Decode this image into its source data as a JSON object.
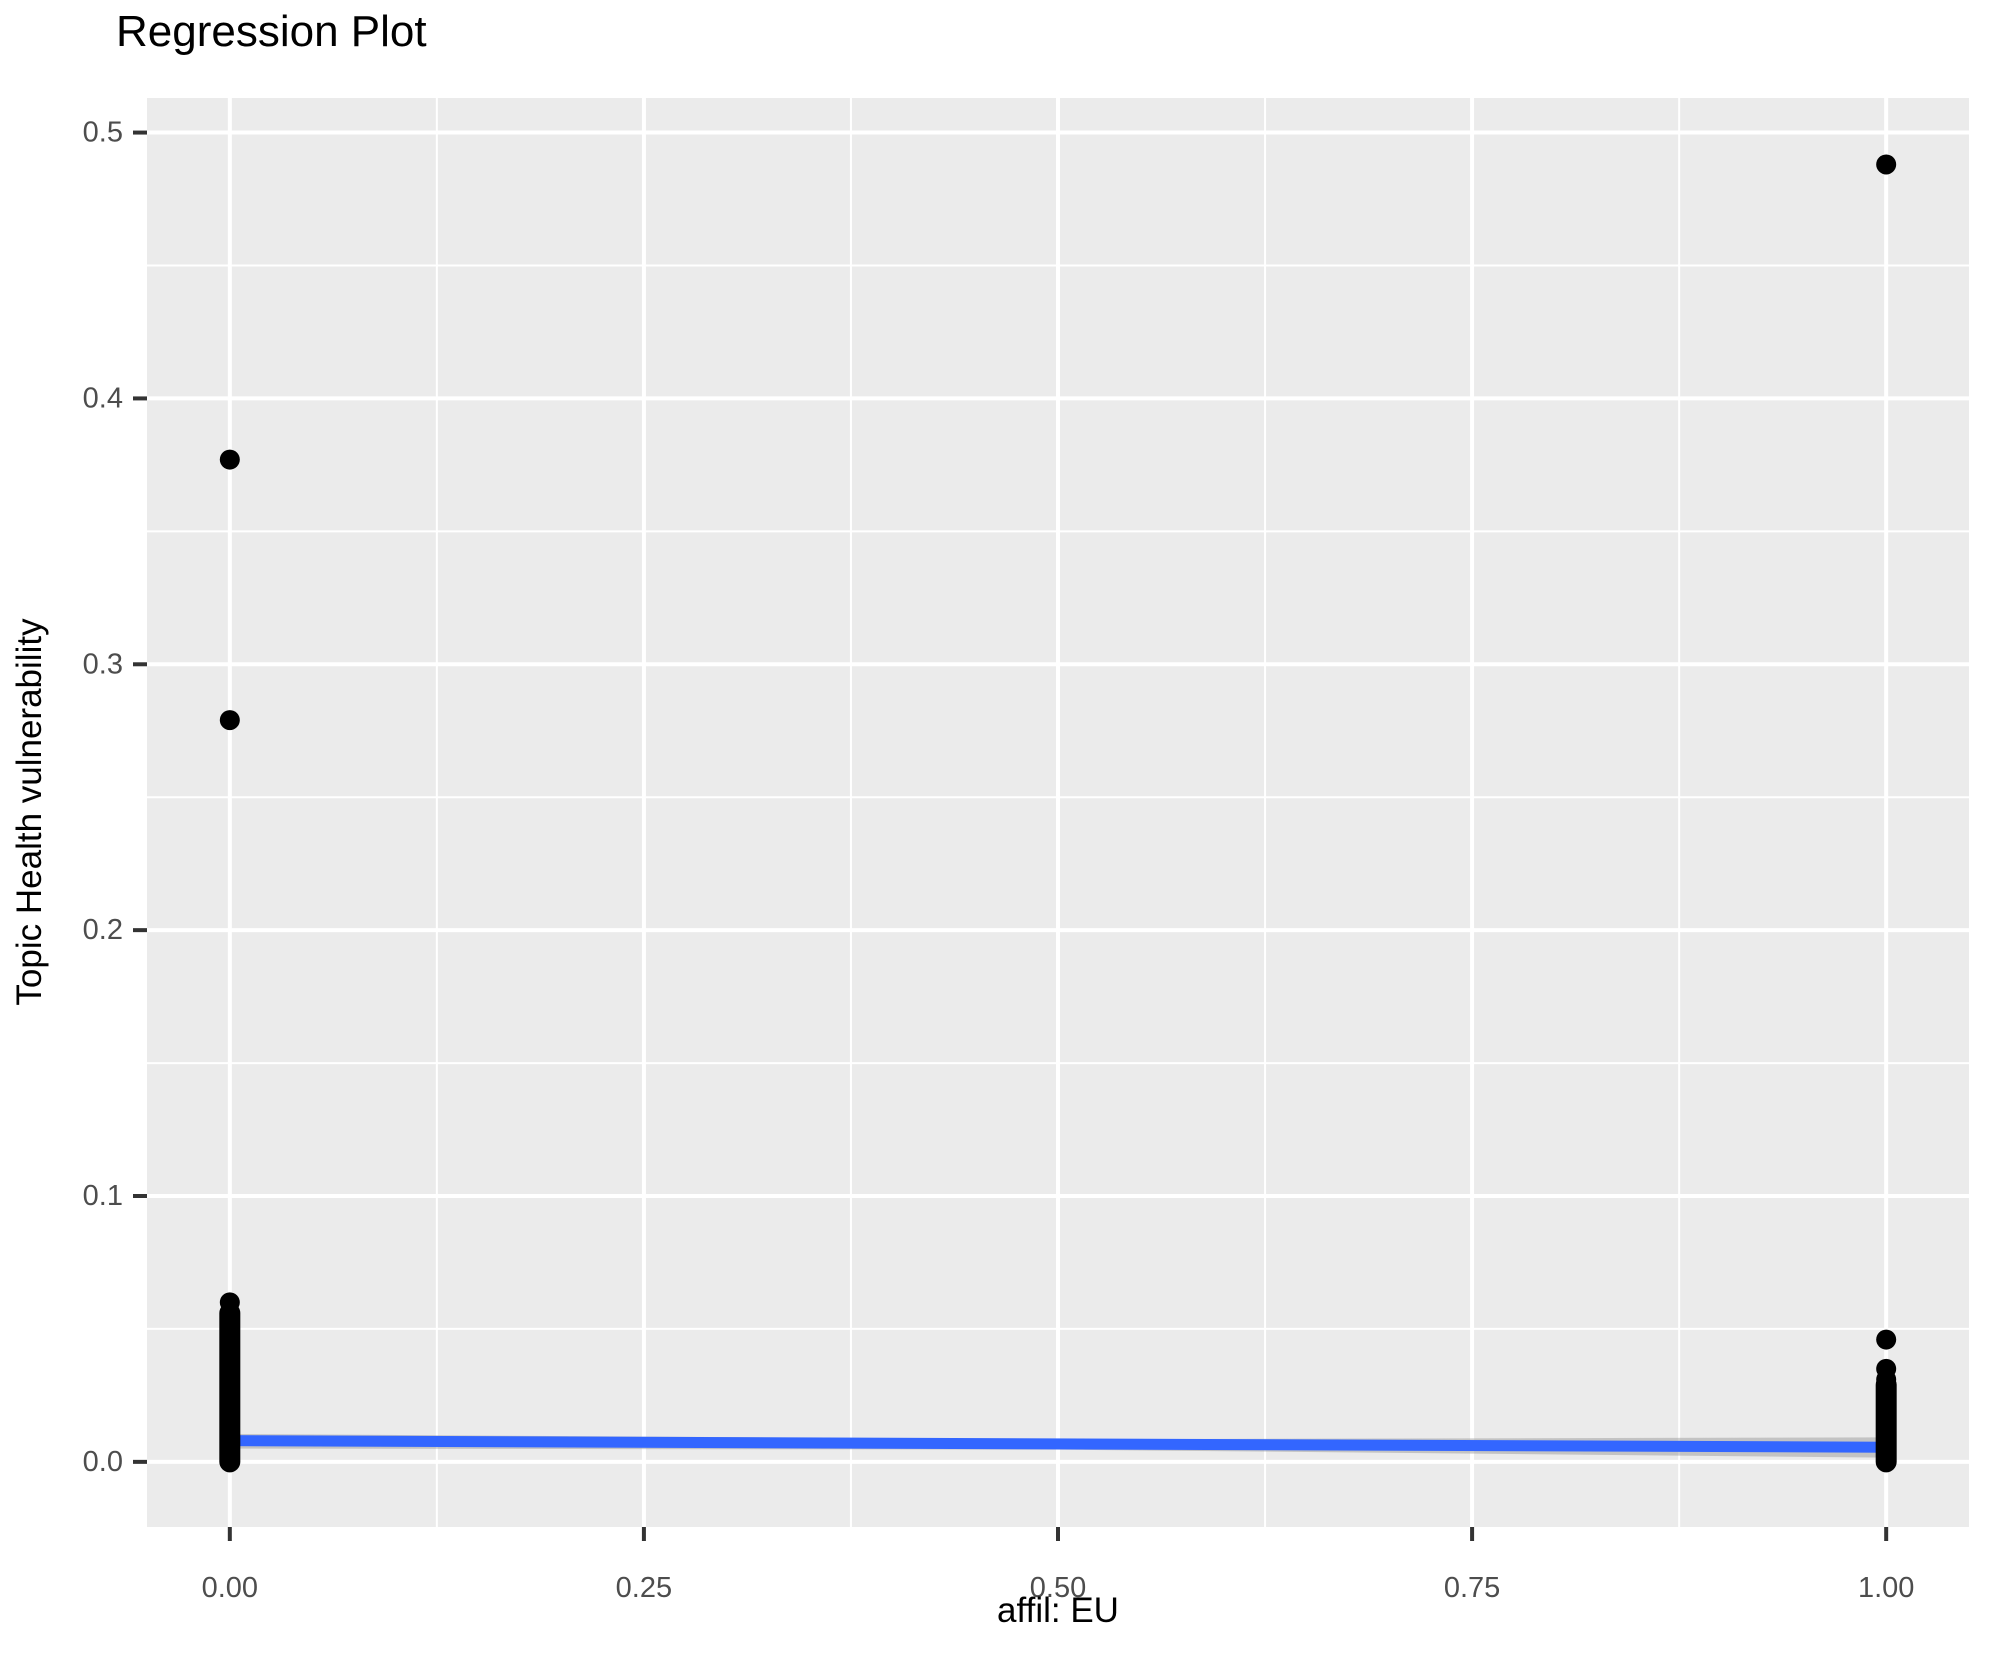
{
  "page": {
    "background_color": "#FFFFFF"
  },
  "chart_data": {
    "type": "scatter",
    "title": "Regression Plot",
    "xlabel": "affil: EU",
    "ylabel": "Topic Health vulnerability",
    "legend": "none",
    "grid": "major and minor white gridlines on grey panel",
    "panel_color": "#EBEBEB",
    "gridline_color": "#FFFFFF",
    "point_color": "#000000",
    "line_color": "#3366FF",
    "band_color": "#9C9C9C",
    "band_opacity": 0.5,
    "tick_label_color": "#4D4D4D",
    "tick_mark_color": "#333333",
    "xlim": [
      -0.05,
      1.05
    ],
    "ylim": [
      -0.0245,
      0.513
    ],
    "x_ticks": {
      "values": [
        0,
        0.25,
        0.5,
        0.75,
        1
      ],
      "labels": [
        "0.00",
        "0.25",
        "0.50",
        "0.75",
        "1.00"
      ]
    },
    "y_ticks": {
      "values": [
        0,
        0.1,
        0.2,
        0.3,
        0.4,
        0.5
      ],
      "labels": [
        "0.0",
        "0.1",
        "0.2",
        "0.3",
        "0.4",
        "0.5"
      ]
    },
    "x_minor_ticks": [
      0.125,
      0.375,
      0.625,
      0.875
    ],
    "y_minor_ticks": [
      0.05,
      0.15,
      0.25,
      0.35,
      0.45
    ],
    "outlier_points": [
      {
        "x": 0,
        "y": 0.377
      },
      {
        "x": 0,
        "y": 0.279
      },
      {
        "x": 0,
        "y": 0.06
      },
      {
        "x": 1,
        "y": 0.488
      },
      {
        "x": 1,
        "y": 0.046
      },
      {
        "x": 1,
        "y": 0.035
      },
      {
        "x": 1,
        "y": 0.031
      }
    ],
    "dense_point_strips": [
      {
        "x": 0,
        "y_min": 0.0,
        "y_max": 0.056,
        "note": "many overplotted points between 0 and ~0.06"
      },
      {
        "x": 1,
        "y_min": 0.0,
        "y_max": 0.029,
        "note": "many overplotted points between 0 and ~0.03"
      }
    ],
    "regression_line": {
      "x": [
        0,
        1
      ],
      "y": [
        0.008,
        0.0055
      ]
    },
    "confidence_band": {
      "x": [
        0,
        0.5,
        1
      ],
      "upper": [
        0.0105,
        0.0085,
        0.0092
      ],
      "lower": [
        0.005,
        0.0046,
        0.0016
      ]
    }
  }
}
